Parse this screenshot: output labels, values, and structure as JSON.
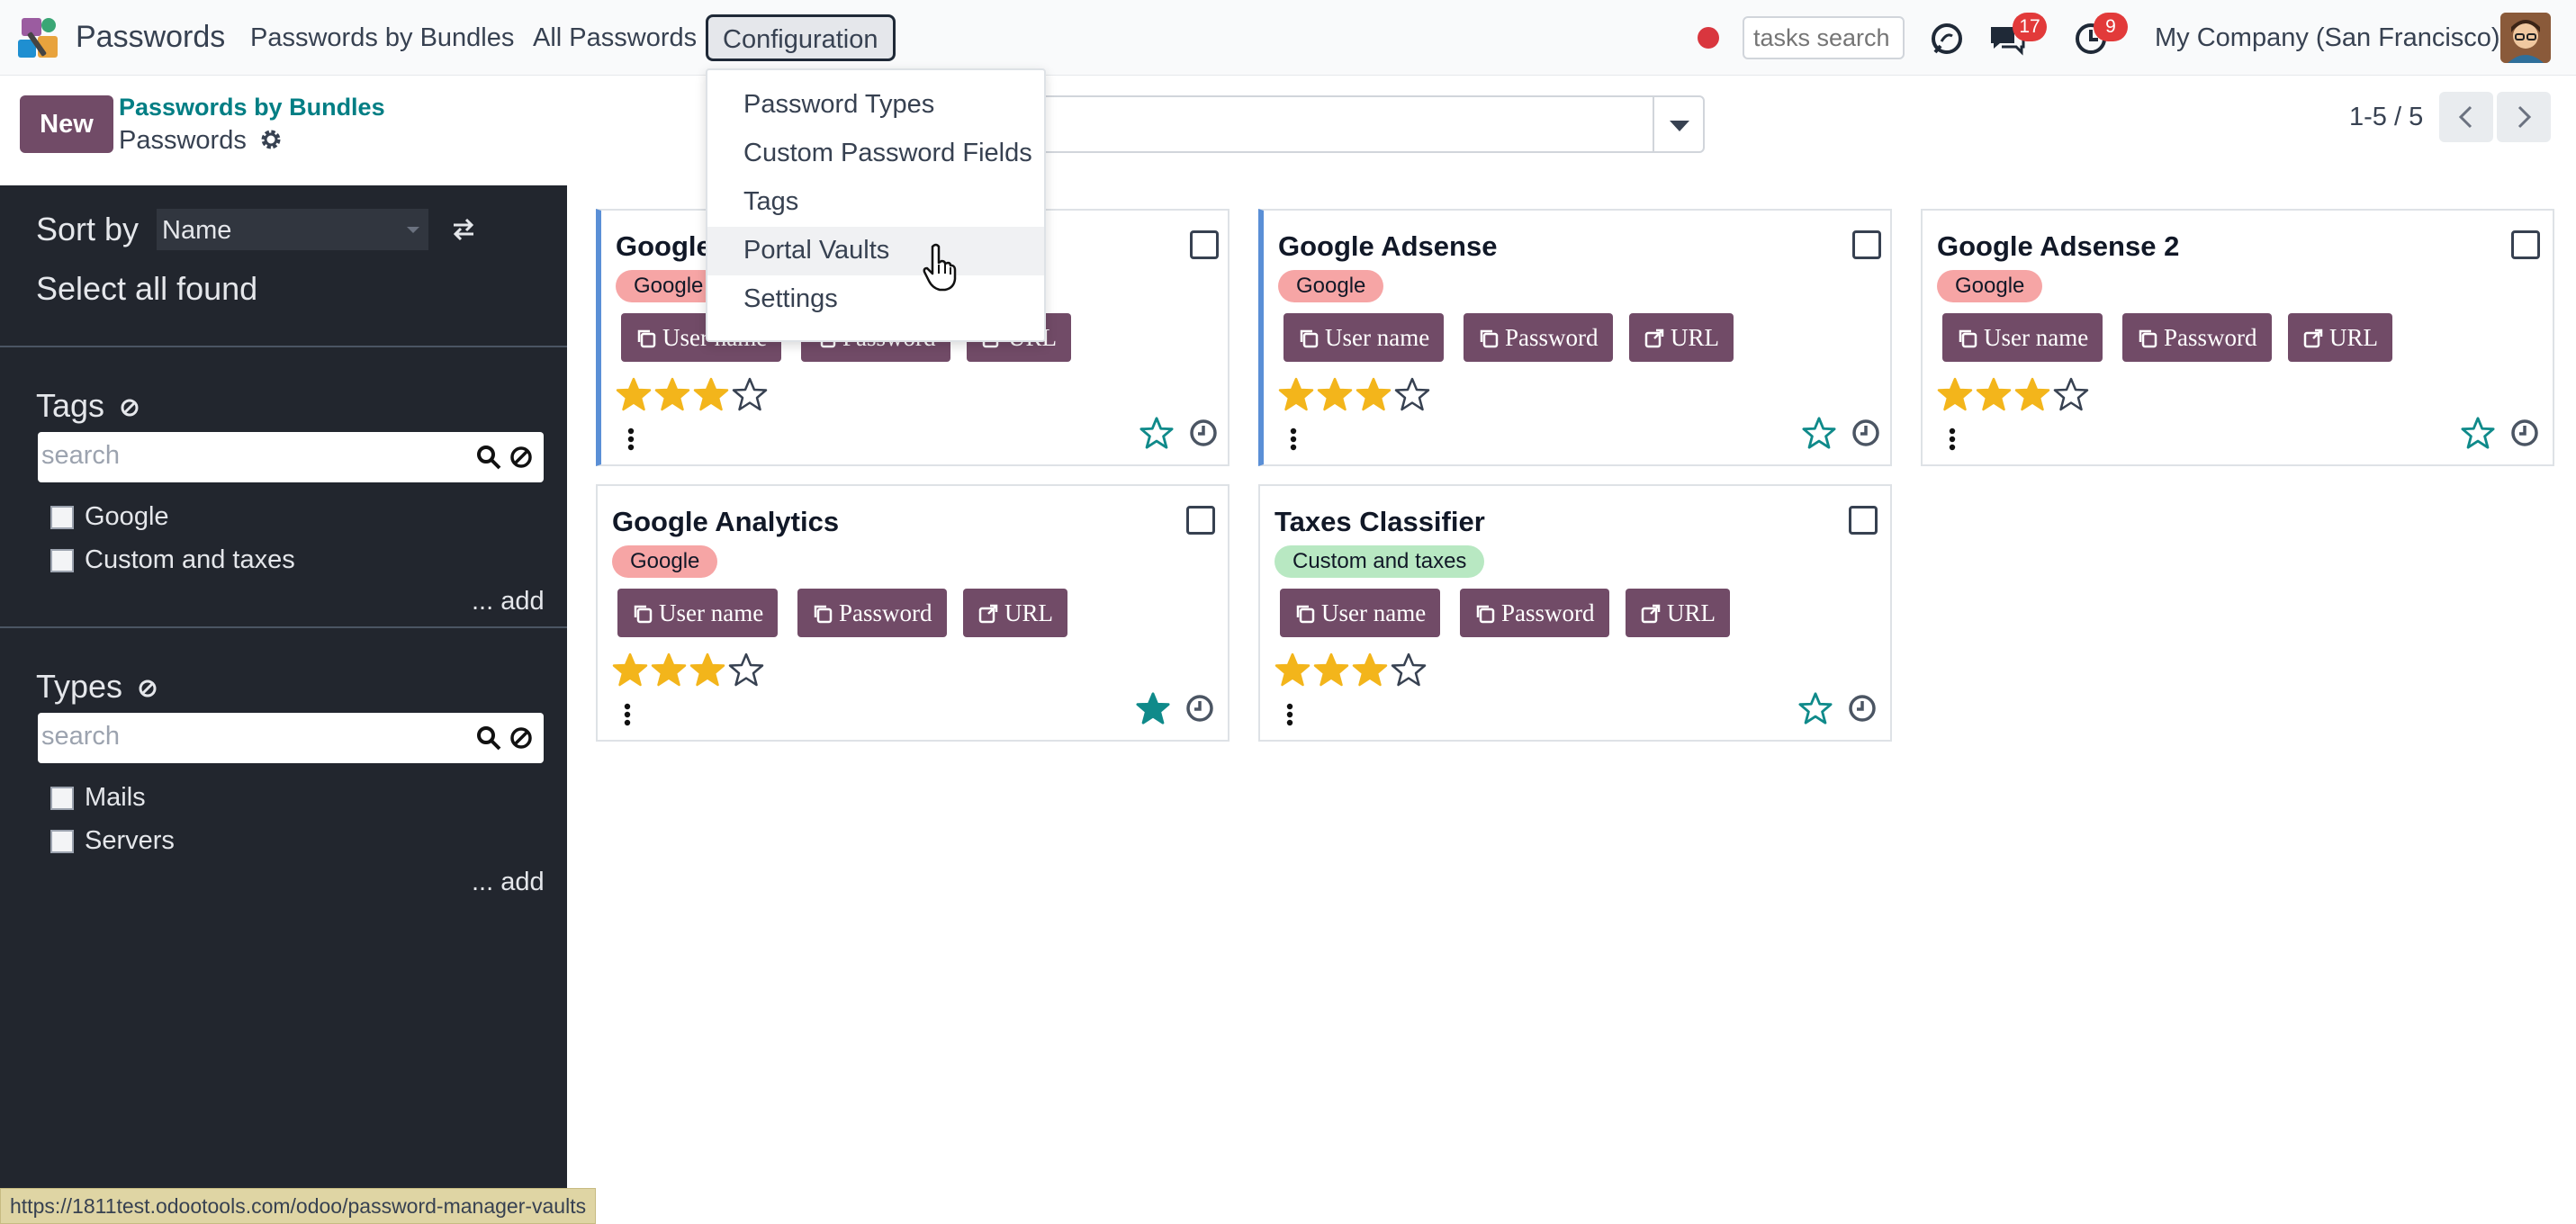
{
  "navbar": {
    "app_name": "Passwords",
    "menus": [
      "Passwords by Bundles",
      "All Passwords",
      "Configuration"
    ],
    "tasks_search_placeholder": "tasks search",
    "messages_count": "17",
    "activities_count": "9",
    "company": "My Company (San Francisco)"
  },
  "control_panel": {
    "new_label": "New",
    "breadcrumb_parent": "Passwords by Bundles",
    "breadcrumb_current": "Passwords",
    "pager": "1-5 / 5"
  },
  "sidebar": {
    "sort_label": "Sort by",
    "sort_value": "Name",
    "select_all": "Select all found",
    "tags": {
      "title": "Tags",
      "search_placeholder": "search",
      "items": [
        "Google",
        "Custom and taxes"
      ],
      "add_label": "... add"
    },
    "types": {
      "title": "Types",
      "search_placeholder": "search",
      "items": [
        "Mails",
        "Servers"
      ],
      "add_label": "... add"
    }
  },
  "cards": [
    {
      "title": "Google",
      "tag": "Google",
      "stars": 3,
      "favorite": false
    },
    {
      "title": "Google Adsense",
      "tag": "Google",
      "stars": 3,
      "favorite": false
    },
    {
      "title": "Google Adsense 2",
      "tag": "Google",
      "stars": 3,
      "favorite": false
    },
    {
      "title": "Google Analytics",
      "tag": "Google",
      "stars": 3,
      "favorite": true
    },
    {
      "title": "Taxes Classifier",
      "tag": "Custom and taxes",
      "stars": 3,
      "favorite": false
    }
  ],
  "card_buttons": {
    "username": "User name",
    "password": "Password",
    "url": "URL"
  },
  "config_dropdown": {
    "items": [
      "Password Types",
      "Custom Password Fields",
      "Tags",
      "Portal Vaults",
      "Settings"
    ],
    "hovered": "Portal Vaults"
  },
  "status_url": "https://1811test.odootools.com/odoo/password-manager-vaults",
  "colors": {
    "primary": "#714b67",
    "sidebar_bg": "#22262e",
    "teal": "#017e84",
    "star": "#f3b51b",
    "tag_google": "#f6a5a5",
    "tag_custom": "#b8e8c2"
  }
}
